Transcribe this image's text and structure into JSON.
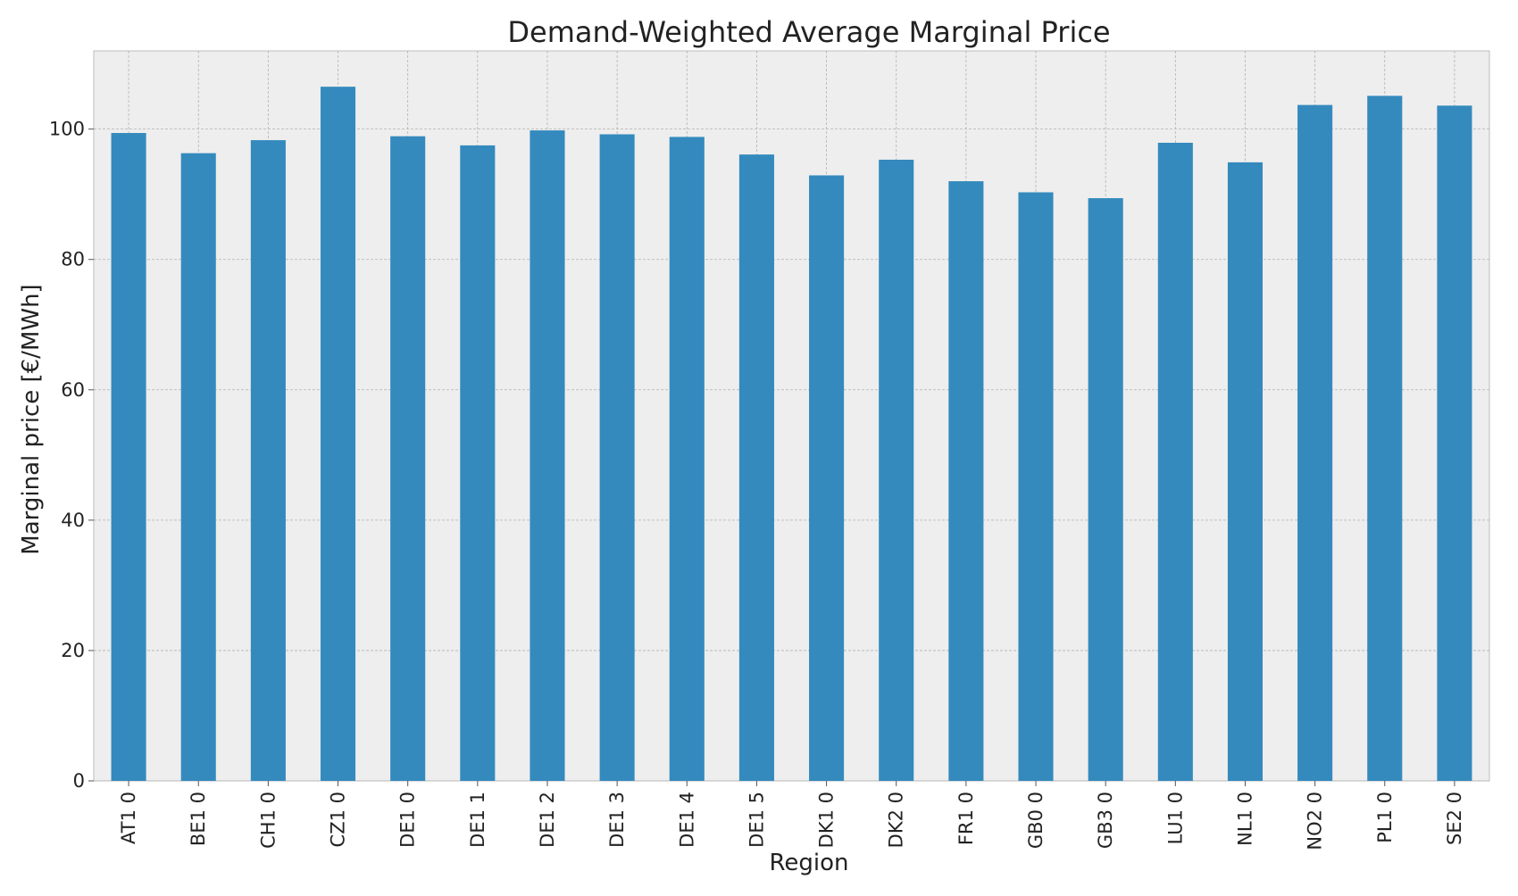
{
  "chart_data": {
    "type": "bar",
    "title": "Demand-Weighted Average Marginal Price",
    "xlabel": "Region",
    "ylabel": "Marginal price [€/MWh]",
    "categories": [
      "AT1 0",
      "BE1 0",
      "CH1 0",
      "CZ1 0",
      "DE1 0",
      "DE1 1",
      "DE1 2",
      "DE1 3",
      "DE1 4",
      "DE1 5",
      "DK1 0",
      "DK2 0",
      "FR1 0",
      "GB0 0",
      "GB3 0",
      "LU1 0",
      "NL1 0",
      "NO2 0",
      "PL1 0",
      "SE2 0"
    ],
    "values": [
      99.4,
      96.3,
      98.3,
      106.5,
      98.9,
      97.5,
      99.8,
      99.2,
      98.8,
      96.1,
      92.9,
      95.3,
      92.0,
      90.3,
      89.4,
      97.9,
      94.9,
      103.7,
      105.1,
      103.6
    ],
    "ylim": [
      0,
      112
    ],
    "yticks": [
      0,
      20,
      40,
      60,
      80,
      100
    ],
    "grid": true,
    "colors": {
      "bar": "#348ABD",
      "plot_background": "#EEEEEE",
      "grid": "#B2B2B2",
      "frame": "#BCBCBC"
    }
  }
}
